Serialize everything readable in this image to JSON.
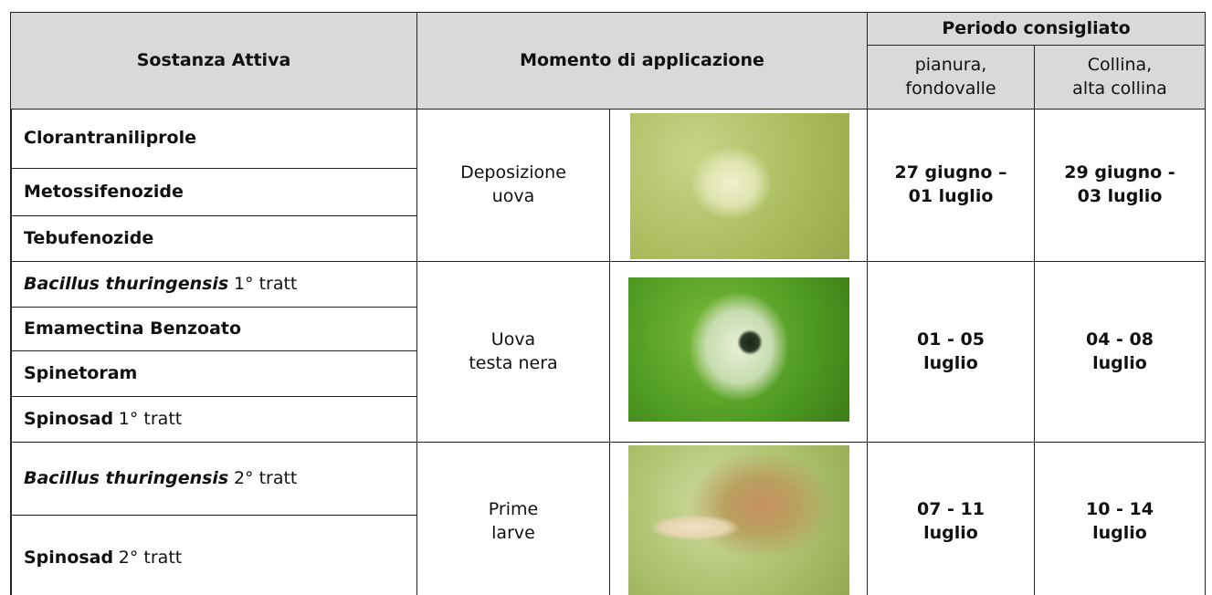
{
  "header": {
    "substance": "Sostanza Attiva",
    "moment": "Momento di applicazione",
    "period": "Periodo consigliato",
    "plain": "pianura,\nfondovalle",
    "hill": "Collina,\nalta collina"
  },
  "groups": [
    {
      "substances": [
        {
          "name": "Clorantraniliprole"
        },
        {
          "name": "Metossifenozide"
        },
        {
          "name": "Tebufenozide"
        }
      ],
      "moment": "Deposizione\nuova",
      "plain": "27 giugno –\n01 luglio",
      "hill": "29 giugno -\n03 luglio"
    },
    {
      "substances": [
        {
          "name": "Bacillus thuringensis",
          "italic": true,
          "suffix": "1° tratt"
        },
        {
          "name": "Emamectina Benzoato"
        },
        {
          "name": "Spinetoram"
        },
        {
          "name": "Spinosad",
          "suffix": "1° tratt"
        }
      ],
      "moment": "Uova\ntesta nera",
      "plain": "01 - 05\nluglio",
      "hill": "04 - 08\nluglio"
    },
    {
      "substances": [
        {
          "name": "Bacillus thuringensis",
          "italic": true,
          "suffix": "2° tratt"
        },
        {
          "name": "Spinosad",
          "suffix": "2° tratt"
        }
      ],
      "moment": "Prime\nlarve",
      "plain": "07 - 11\nluglio",
      "hill": "10 - 14\nluglio"
    }
  ]
}
